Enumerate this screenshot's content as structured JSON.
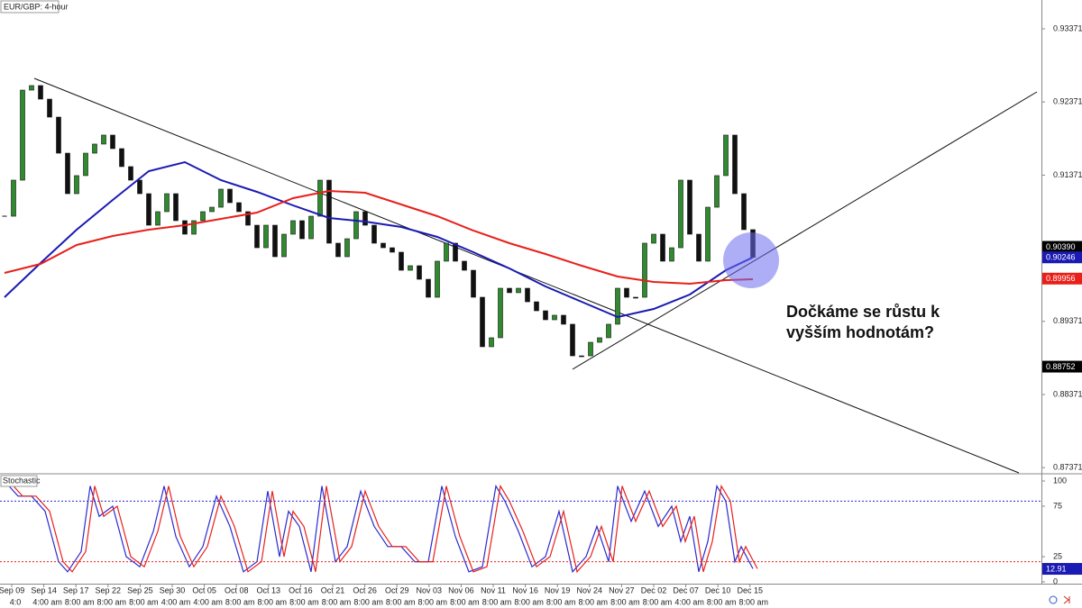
{
  "chart_data": [
    {
      "type": "candlestick",
      "title": "EUR/GBP: 4-hour",
      "categories": [
        "Sep 09",
        "Sep 14",
        "Sep 17",
        "Sep 22",
        "Sep 25",
        "Sep 30",
        "Oct 05",
        "Oct 08",
        "Oct 13",
        "Oct 16",
        "Oct 21",
        "Oct 26",
        "Oct 29",
        "Nov 03",
        "Nov 06",
        "Nov 11",
        "Nov 16",
        "Nov 19",
        "Nov 24",
        "Nov 27",
        "Dec 02",
        "Dec 07",
        "Dec 10",
        "Dec 15"
      ],
      "category_times": [
        "4:0",
        "4:00 am",
        "8:00 am",
        "8:00 am",
        "8:00 am",
        "4:00 am",
        "4:00 am",
        "8:00 am",
        "8:00 am",
        "8:00 am",
        "8:00 am",
        "8:00 am",
        "8:00 am",
        "8:00 am",
        "8:00 am",
        "8:00 am",
        "8:00 am",
        "8:00 am",
        "8:00 am",
        "8:00 am",
        "8:00 am",
        "4:00 am",
        "8:00 am",
        "8:00 am"
      ],
      "closes": [
        0.90809,
        0.91302,
        0.92533,
        0.92595,
        0.9241,
        0.92164,
        0.91671,
        0.91117,
        0.91364,
        0.91671,
        0.91795,
        0.91918,
        0.91733,
        0.91487,
        0.91302,
        0.91117,
        0.90686,
        0.90871,
        0.91117,
        0.90748,
        0.90563,
        0.90748,
        0.90871,
        0.90932,
        0.91179,
        0.90994,
        0.90871,
        0.90686,
        0.90378,
        0.90686,
        0.90255,
        0.90563,
        0.90748,
        0.90501,
        0.90809,
        0.91302,
        0.9044,
        0.90255,
        0.90501,
        0.90871,
        0.90686,
        0.9044,
        0.90378,
        0.90317,
        0.9007,
        0.90132,
        0.89947,
        0.89701,
        0.90194,
        0.9044,
        0.90194,
        0.9007,
        0.89701,
        0.89024,
        0.89147,
        0.89824,
        0.89763,
        0.89824,
        0.89639,
        0.89516,
        0.89393,
        0.89455,
        0.89332,
        0.889,
        0.889,
        0.89085,
        0.89147,
        0.89332,
        0.89824,
        0.89701,
        0.89701,
        0.9044,
        0.90563,
        0.90194,
        0.90378,
        0.91302,
        0.90563,
        0.90194,
        0.90932,
        0.91364,
        0.91918,
        0.91117,
        0.90625,
        0.90246
      ],
      "up_color": "#2e8b2e",
      "down_color": "#111111",
      "series": [
        {
          "color": "#1a1ab4",
          "x": [
            0,
            4,
            8,
            12,
            16,
            20,
            24,
            28,
            32,
            36,
            40,
            44,
            48,
            52,
            56,
            60,
            64,
            68,
            72,
            76,
            80,
            83
          ],
          "values": [
            0.89701,
            0.90169,
            0.90625,
            0.91031,
            0.91425,
            0.91548,
            0.91302,
            0.91142,
            0.90957,
            0.90785,
            0.90735,
            0.90662,
            0.90526,
            0.90317,
            0.90095,
            0.89849,
            0.89639,
            0.8943,
            0.89541,
            0.89738,
            0.9007,
            0.90246
          ]
        },
        {
          "color": "#e8201a",
          "x": [
            0,
            4,
            8,
            12,
            16,
            20,
            24,
            28,
            32,
            36,
            40,
            44,
            48,
            52,
            56,
            60,
            64,
            68,
            72,
            76,
            80,
            83
          ],
          "values": [
            0.90034,
            0.90157,
            0.90415,
            0.90538,
            0.90625,
            0.90686,
            0.90772,
            0.90859,
            0.91056,
            0.91154,
            0.9113,
            0.90969,
            0.90809,
            0.90612,
            0.9044,
            0.90292,
            0.90132,
            0.89984,
            0.8991,
            0.89886,
            0.89935,
            0.89947
          ]
        }
      ],
      "ylim": [
        0.87297,
        0.93765
      ],
      "yticks": [
        0.93371,
        0.92371,
        0.91371,
        0.90371,
        0.89371,
        0.88371,
        0.87371
      ],
      "price_tags": [
        {
          "value": 0.9039,
          "label": "0.90390",
          "color": "#000000"
        },
        {
          "value": 0.90246,
          "color": "#1a1ab4"
        },
        {
          "value": 0.89956,
          "color": "#e8201a"
        },
        {
          "value": 0.88752,
          "color": "#000000"
        }
      ],
      "annotation": [
        "Dočkáme se růstu k",
        "vyšším hodnotám?"
      ]
    },
    {
      "type": "line",
      "title": "Stochastic",
      "series": [
        {
          "color": "#2a2ad0",
          "x": [
            0.5,
            1.5,
            3,
            4.5,
            6,
            7,
            8.5,
            9.5,
            10.5,
            12,
            13.5,
            15,
            16.5,
            17.7,
            19,
            20.5,
            22,
            23.5,
            25,
            26.5,
            28,
            29.2,
            30.5,
            31.5,
            32.7,
            34,
            35.2,
            36.7,
            38,
            39.5,
            41,
            42.5,
            44,
            45.5,
            47,
            48.5,
            50,
            51.5,
            53,
            54.5,
            55.5,
            57,
            58.5,
            60,
            61.5,
            63,
            64.5,
            65.7,
            67,
            68,
            69.5,
            71,
            72.5,
            74,
            75,
            76,
            77,
            78,
            79,
            80,
            81,
            81.7,
            83
          ],
          "values": [
            95,
            85,
            85,
            70,
            20,
            10,
            30,
            95,
            65,
            75,
            25,
            15,
            50,
            95,
            45,
            15,
            35,
            85,
            55,
            10,
            20,
            90,
            25,
            70,
            55,
            10,
            95,
            20,
            35,
            90,
            55,
            35,
            35,
            20,
            20,
            95,
            45,
            10,
            15,
            95,
            80,
            50,
            15,
            25,
            70,
            10,
            25,
            55,
            20,
            95,
            60,
            90,
            55,
            75,
            40,
            65,
            10,
            40,
            95,
            80,
            20,
            35,
            13
          ]
        },
        {
          "color": "#e8201a",
          "x": [
            1,
            2,
            3.5,
            5,
            6.5,
            7.5,
            9,
            10,
            11,
            12.5,
            14,
            15.5,
            17,
            18.2,
            19.5,
            21,
            22.5,
            24,
            25.5,
            27,
            28.5,
            29.7,
            31,
            32,
            33.2,
            34.5,
            35.7,
            37.2,
            38.5,
            40,
            41.5,
            43,
            44.5,
            46,
            47.5,
            49,
            50.5,
            52,
            53.5,
            55,
            56,
            57.5,
            59,
            60.5,
            62,
            63.5,
            65,
            66.2,
            67.5,
            68.5,
            70,
            71.5,
            73,
            74.5,
            75.5,
            76.5,
            77.5,
            78.5,
            79.5,
            80.5,
            81.5,
            82.2,
            83.5
          ],
          "values": [
            95,
            85,
            85,
            70,
            20,
            10,
            30,
            95,
            65,
            75,
            25,
            15,
            50,
            95,
            45,
            15,
            35,
            85,
            55,
            10,
            20,
            90,
            25,
            70,
            55,
            10,
            95,
            20,
            35,
            90,
            55,
            35,
            35,
            20,
            20,
            95,
            45,
            10,
            15,
            95,
            80,
            50,
            15,
            25,
            70,
            10,
            25,
            55,
            20,
            95,
            60,
            90,
            55,
            75,
            40,
            65,
            10,
            40,
            95,
            80,
            20,
            35,
            13
          ]
        }
      ],
      "ylim": [
        0,
        100
      ],
      "yticks": [
        100,
        75,
        25,
        0
      ],
      "levels": [
        {
          "value": 80,
          "color": "#2a2ad0"
        },
        {
          "value": 20,
          "color": "#e8201a"
        }
      ],
      "price_tags": [
        {
          "value": 12.91,
          "color": "#1a1ab4"
        }
      ]
    }
  ]
}
